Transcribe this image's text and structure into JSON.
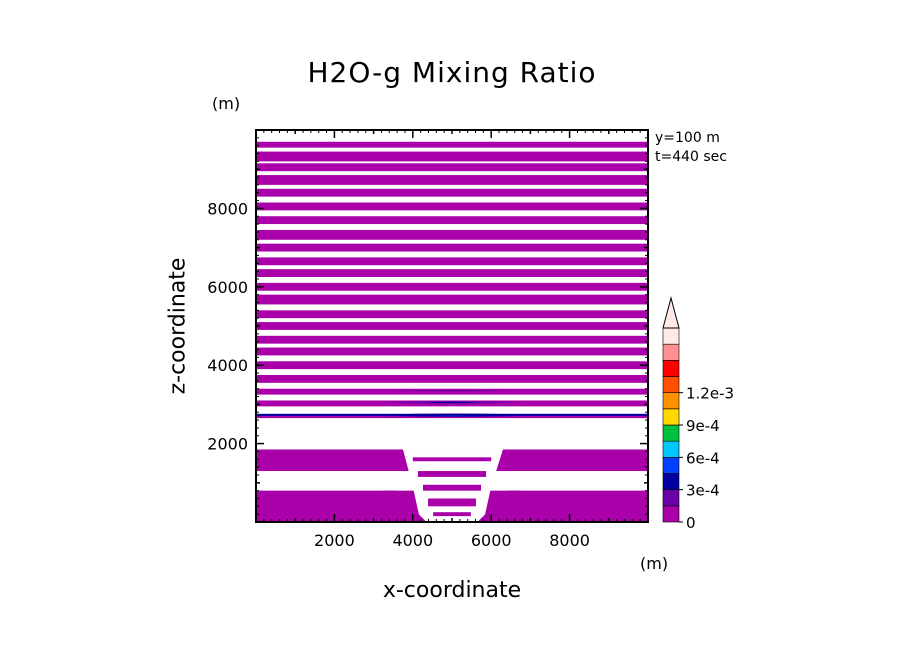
{
  "chart_data": {
    "type": "heatmap",
    "title": "H2O-g Mixing Ratio",
    "xlabel": "x-coordinate",
    "ylabel": "z-coordinate",
    "x_unit": "(m)",
    "y_unit": "(m)",
    "xlim": [
      0,
      10000
    ],
    "ylim": [
      0,
      10000
    ],
    "xticks": [
      "2000",
      "4000",
      "6000",
      "8000"
    ],
    "yticks": [
      "2000",
      "4000",
      "6000",
      "8000"
    ],
    "annotations": [
      "y=100 m",
      "t=440 sec"
    ],
    "colorbar": {
      "labels": [
        "0",
        "3e-4",
        "6e-4",
        "9e-4",
        "1.2e-3"
      ],
      "levels": [
        0,
        0.00015,
        0.0003,
        0.00045,
        0.0006,
        0.00075,
        0.0009,
        0.00105,
        0.0012,
        0.00135
      ],
      "colors": [
        "#aa00aa",
        "#6a00a8",
        "#0000a0",
        "#0040ff",
        "#00c8ff",
        "#00c040",
        "#ffd800",
        "#ff9000",
        "#ff5000",
        "#ff0000",
        "#ff9090",
        "#ffe8e8"
      ]
    },
    "bands_m": [
      [
        9700,
        9550
      ],
      [
        9450,
        9200
      ],
      [
        9150,
        8950
      ],
      [
        8850,
        8600
      ],
      [
        8500,
        8300
      ],
      [
        8150,
        7950
      ],
      [
        7800,
        7600
      ],
      [
        7450,
        7200
      ],
      [
        7100,
        6900
      ],
      [
        6750,
        6550
      ],
      [
        6450,
        6250
      ],
      [
        6100,
        5900
      ],
      [
        5800,
        5550
      ],
      [
        5400,
        5200
      ],
      [
        5100,
        4900
      ],
      [
        4750,
        4550
      ],
      [
        4450,
        4250
      ],
      [
        4100,
        3900
      ],
      [
        3750,
        3550
      ],
      [
        3400,
        3250
      ],
      [
        3100,
        2950
      ],
      [
        2750,
        2650
      ],
      [
        1850,
        1300
      ],
      [
        800,
        0
      ]
    ],
    "series": [
      {
        "values": [
          0,
          0.00015,
          0.0003,
          0.00045
        ]
      }
    ]
  }
}
